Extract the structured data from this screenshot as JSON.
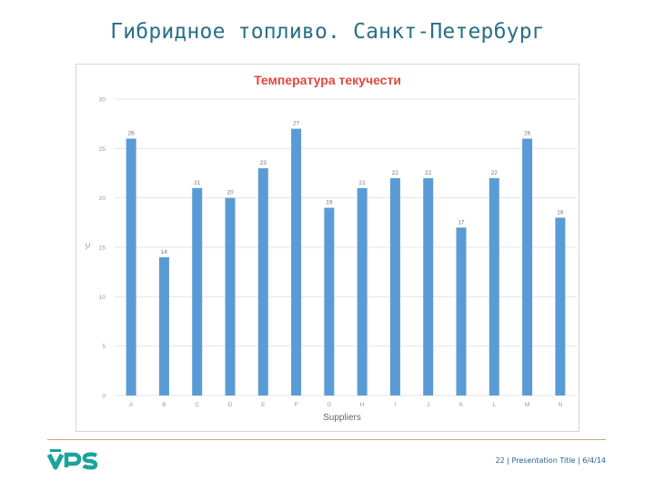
{
  "slide": {
    "title": "Гибридное топливо.  Санкт-Петербург"
  },
  "colors": {
    "bar": "#5b9bd5",
    "title": "#e2473d",
    "slide_title": "#2a6f86",
    "footer_line": "#c9a86a",
    "logo_teal": "#1ba39c",
    "footer_text": "#1f5f9a"
  },
  "chart_data": {
    "type": "bar",
    "title": "Температура текучести",
    "xlabel": "Suppliers",
    "ylabel": "°C",
    "categories": [
      "A",
      "B",
      "C",
      "D",
      "E",
      "F",
      "G",
      "H",
      "I",
      "J",
      "K",
      "L",
      "M",
      "N"
    ],
    "values": [
      26,
      14,
      21,
      20,
      23,
      27,
      19,
      21,
      22,
      22,
      17,
      22,
      26,
      18
    ],
    "ylim": [
      0,
      30
    ],
    "yticks": [
      0,
      5,
      10,
      15,
      20,
      25,
      30
    ],
    "grid": true,
    "legend": "none"
  },
  "footer": {
    "logo_text": "VPS",
    "page_number": "22",
    "separator": " | ",
    "presentation_title": "Presentation Title",
    "date": "6/4/14"
  }
}
